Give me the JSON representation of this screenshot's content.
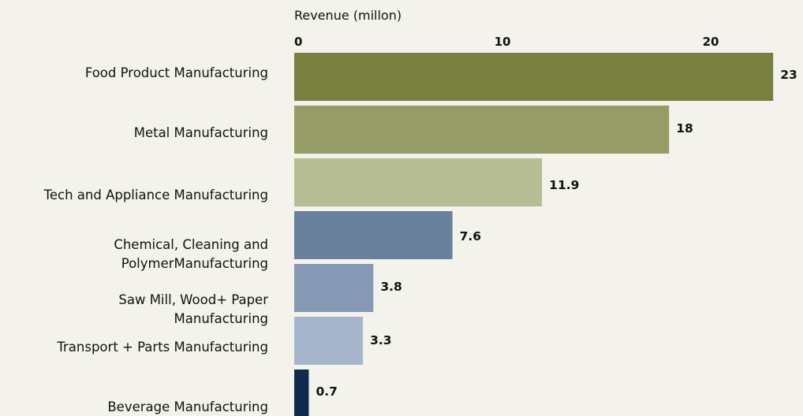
{
  "chart_data": {
    "type": "bar",
    "orientation": "horizontal",
    "xlabel": "Revenue (millon)",
    "xticks": [
      0,
      10,
      20
    ],
    "xlim": [
      0,
      23
    ],
    "categories": [
      "Food Product Manufacturing",
      "Metal Manufacturing",
      "Tech and Appliance Manufacturing",
      "Chemical, Cleaning and PolymerManufacturing",
      "Saw Mill, Wood+ Paper Manufacturing",
      "Transport + Parts Manufacturing",
      "Beverage Manufacturing"
    ],
    "values": [
      23,
      18,
      11.9,
      7.6,
      3.8,
      3.3,
      0.7
    ],
    "value_labels": [
      "23",
      "18",
      "11.9",
      "7.6",
      "3.8",
      "3.3",
      "0.7"
    ],
    "colors": [
      "#78803f",
      "#959c65",
      "#b7bd93",
      "#68809c",
      "#8599b4",
      "#a6b5cc",
      "#0f2a4f"
    ],
    "background": "#f3f3ec",
    "grid": false,
    "legend": "none"
  }
}
